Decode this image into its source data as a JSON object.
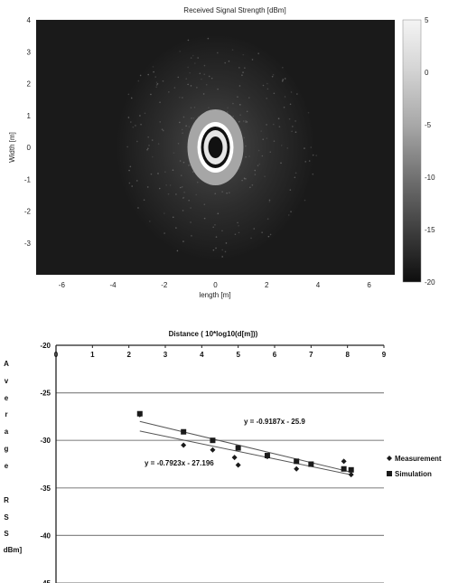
{
  "chart_data": [
    {
      "type": "heatmap",
      "title": "Received Signal Strength [dBm]",
      "xlabel": "length [m]",
      "ylabel": "Width [m]",
      "xlim": [
        -7,
        7
      ],
      "ylim": [
        -4,
        4
      ],
      "x_ticks": [
        -6,
        -4,
        -2,
        0,
        2,
        4,
        6
      ],
      "y_ticks": [
        4,
        3,
        2,
        1,
        0,
        -1,
        -2,
        -3
      ],
      "colorbar": {
        "range": [
          -20,
          5
        ],
        "ticks": [
          5,
          0,
          -5,
          -10,
          -15,
          -20
        ]
      },
      "source": {
        "x": 0,
        "y": 0
      },
      "colors": {
        "background": "#1a1a1a",
        "frame": "#d8d8d8"
      }
    },
    {
      "type": "scatter",
      "title": "Distance ( 10*log10(d[m]))",
      "ylabel": "Average RSS [dBm]",
      "ylabel_letters": [
        "A",
        "v",
        "e",
        "r",
        "a",
        "g",
        "e",
        "R",
        "S",
        "S",
        "dBm]"
      ],
      "xlim": [
        0,
        9
      ],
      "ylim": [
        -45,
        -20
      ],
      "x_ticks": [
        0,
        1,
        2,
        3,
        4,
        5,
        6,
        7,
        8,
        9
      ],
      "y_ticks": [
        -20,
        -25,
        -30,
        -35,
        -40,
        -45
      ],
      "series": [
        {
          "name": "Measurement",
          "marker": "diamond",
          "points": [
            [
              2.3,
              -27.3
            ],
            [
              3.5,
              -30.5
            ],
            [
              4.3,
              -31.0
            ],
            [
              4.9,
              -31.8
            ],
            [
              5.0,
              -32.6
            ],
            [
              5.8,
              -31.7
            ],
            [
              6.6,
              -32.2
            ],
            [
              6.6,
              -33.0
            ],
            [
              7.0,
              -32.5
            ],
            [
              7.9,
              -32.2
            ],
            [
              8.1,
              -33.6
            ]
          ]
        },
        {
          "name": "Simulation",
          "marker": "square",
          "points": [
            [
              2.3,
              -27.2
            ],
            [
              3.5,
              -29.1
            ],
            [
              4.3,
              -30.0
            ],
            [
              5.0,
              -30.8
            ],
            [
              5.8,
              -31.6
            ],
            [
              6.6,
              -32.2
            ],
            [
              7.0,
              -32.5
            ],
            [
              7.9,
              -33.0
            ],
            [
              8.1,
              -33.1
            ]
          ]
        }
      ],
      "trendlines": [
        {
          "series": "Measurement",
          "equation": "y = -0.7923x - 27.196",
          "slope": -0.7923,
          "intercept": -27.196,
          "x_range": [
            2.3,
            8.1
          ]
        },
        {
          "series": "Simulation",
          "equation": "y = -0.9187x - 25.9",
          "slope": -0.9187,
          "intercept": -25.9,
          "x_range": [
            2.3,
            8.1
          ]
        }
      ],
      "legend": "right",
      "grid": true
    }
  ]
}
